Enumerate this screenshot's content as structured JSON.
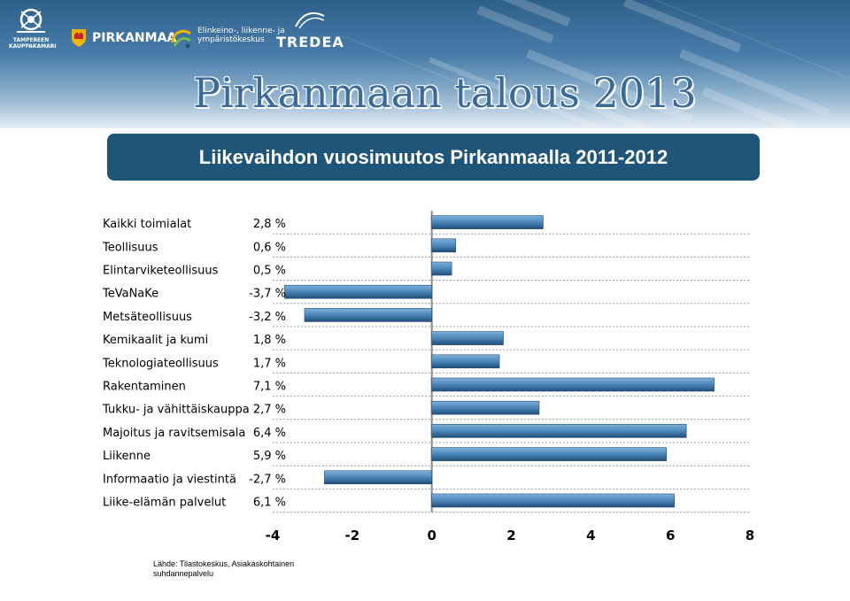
{
  "header": {
    "logos": {
      "tampere": [
        "TAMPEREEN",
        "KAUPPAKAMARI"
      ],
      "pirkanmaa": "PIRKANMAA",
      "ely": [
        "Elinkeino-, liikenne- ja",
        "ympäristökeskus"
      ],
      "tredea": "TREDEA"
    },
    "title": "Pirkanmaan talous 2013",
    "subtitle": "Liikevaihdon vuosimuutos Pirkanmaalla 2011-2012"
  },
  "colors": {
    "bar": "#4b86b8",
    "bar_dark": "#1f4e78",
    "subtitle_bg": "#1f5578",
    "title": "#3a6a9a"
  },
  "chart_data": {
    "type": "bar",
    "orientation": "horizontal",
    "categories": [
      "Kaikki toimialat",
      "Teollisuus",
      "Elintarviketeollisuus",
      "TeVaNaKe",
      "Metsäteollisuus",
      "Kemikaalit ja kumi",
      "Teknologiateollisuus",
      "Rakentaminen",
      "Tukku- ja vähittäiskauppa",
      "Majoitus ja ravitsemisala",
      "Liikenne",
      "Informaatio ja viestintä",
      "Liike-elämän palvelut"
    ],
    "values": [
      2.8,
      0.6,
      0.5,
      -3.7,
      -3.2,
      1.8,
      1.7,
      7.1,
      2.7,
      6.4,
      5.9,
      -2.7,
      6.1
    ],
    "value_labels": [
      "2,8 %",
      "0,6 %",
      "0,5 %",
      "-3,7 %",
      "-3,2 %",
      "1,8 %",
      "1,7 %",
      "7,1 %",
      "2,7 %",
      "6,4 %",
      "5,9 %",
      "-2,7 %",
      "6,1 %"
    ],
    "xlim": [
      -4,
      8
    ],
    "xticks": [
      -4,
      -2,
      0,
      2,
      4,
      6,
      8
    ],
    "xtick_labels": [
      "-4",
      "-2",
      "0",
      "2",
      "4",
      "6",
      "8"
    ],
    "grid": "horizontal dotted"
  },
  "source": "Lähde: Tilastokeskus, Asiakaskohtainen suhdannepalvelu"
}
